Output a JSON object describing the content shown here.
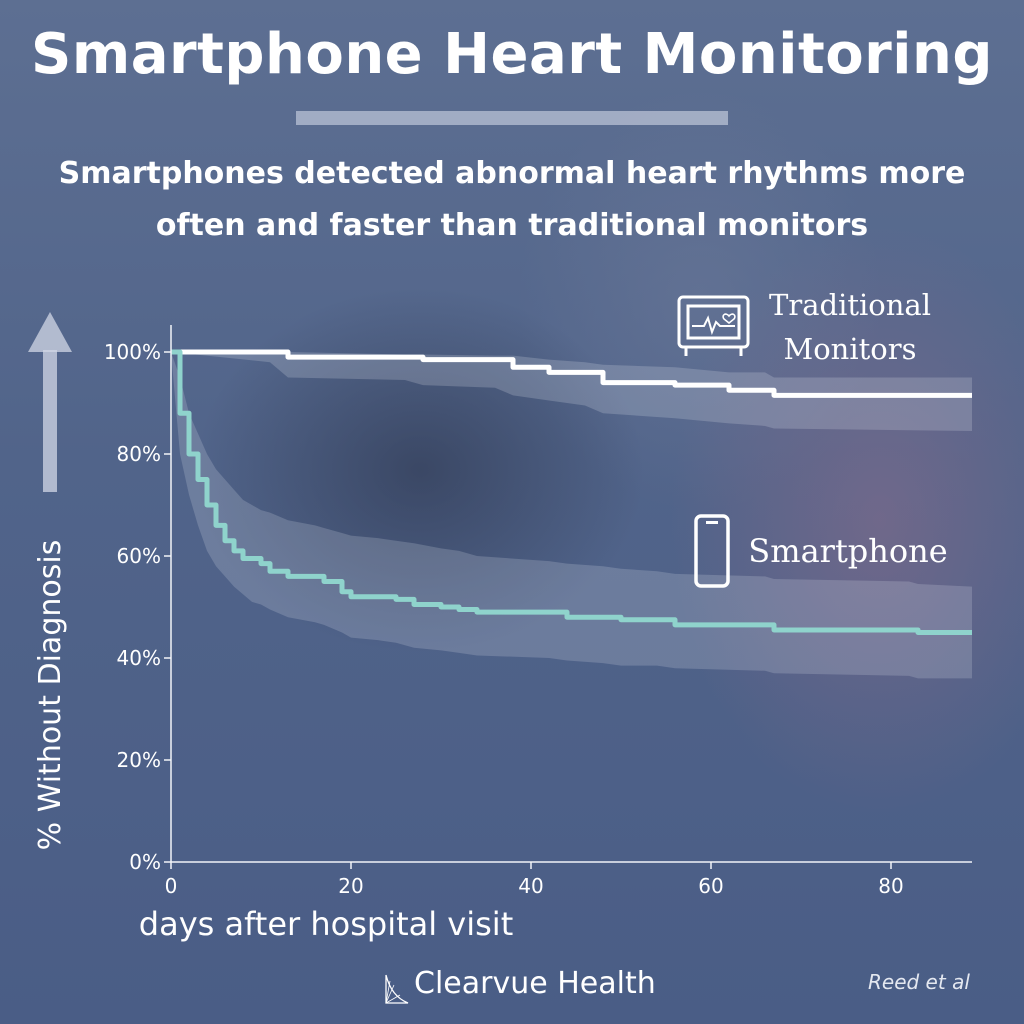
{
  "header": {
    "title": "Smartphone Heart Monitoring",
    "subtitle_line1": "Smartphones detected abnormal heart rhythms more",
    "subtitle_line2": "often and faster than traditional monitors"
  },
  "footer": {
    "brand": "Clearvue Health",
    "citation": "Reed et al"
  },
  "colors": {
    "traditional": "#ffffff",
    "smartphone": "#8fd3cc",
    "ci_band": "#e0e4ee"
  },
  "chart_data": {
    "type": "line",
    "xlabel": "days after hospital visit",
    "ylabel": "% Without Diagnosis",
    "xlim": [
      0,
      89
    ],
    "ylim": [
      0,
      100
    ],
    "x_ticks": [
      0,
      20,
      40,
      60,
      80
    ],
    "y_ticks": [
      0,
      20,
      40,
      60,
      80,
      100
    ],
    "y_tick_labels": [
      "0%",
      "20%",
      "40%",
      "60%",
      "80%",
      "100%"
    ],
    "grid": false,
    "series": [
      {
        "name": "Traditional Monitors",
        "icon": "monitor-icon",
        "x": [
          0,
          11,
          13,
          26,
          28,
          36,
          38,
          42,
          46,
          48,
          56,
          62,
          66,
          67,
          89
        ],
        "y": [
          100,
          100,
          99,
          99,
          98.5,
          98.5,
          97,
          96,
          96,
          94,
          93.5,
          92.5,
          92.5,
          91.5,
          91.5
        ],
        "ci_upper": [
          100,
          100,
          100,
          99.5,
          99.5,
          99.3,
          99.3,
          98.5,
          98,
          97.5,
          97,
          96,
          96,
          95,
          95
        ],
        "ci_lower": [
          100,
          98,
          95,
          94.5,
          93.5,
          93,
          91.5,
          90.5,
          89.5,
          88,
          87,
          86,
          85.5,
          85,
          84.5
        ]
      },
      {
        "name": "Smartphone",
        "icon": "smartphone-icon",
        "x": [
          0,
          1,
          2,
          3,
          4,
          5,
          6,
          7,
          8,
          9,
          10,
          11,
          13,
          16,
          17,
          19,
          20,
          23,
          25,
          27,
          30,
          32,
          34,
          42,
          44,
          48,
          50,
          54,
          56,
          66,
          67,
          82,
          83,
          89
        ],
        "y": [
          100,
          88,
          80,
          75,
          70,
          66,
          63,
          61,
          59.5,
          59.5,
          58.5,
          57,
          56,
          56,
          55,
          53,
          52,
          52,
          51.5,
          50.5,
          50,
          49.5,
          49,
          49,
          48,
          48,
          47.5,
          47.5,
          46.5,
          46.5,
          45.5,
          45.5,
          45,
          45
        ],
        "ci_upper": [
          100,
          95,
          88,
          84,
          80,
          77,
          75,
          73,
          71,
          70,
          69,
          68.5,
          67,
          66,
          65.5,
          64.5,
          64,
          63.5,
          63,
          62.5,
          61.5,
          61,
          60,
          59,
          58.5,
          58,
          57.5,
          57,
          56.5,
          56,
          55.5,
          55,
          54.5,
          54
        ],
        "ci_lower": [
          100,
          80,
          72,
          66,
          61,
          58,
          56,
          54,
          52.5,
          51,
          50.5,
          49.5,
          48,
          47,
          46.5,
          45,
          44,
          43.5,
          43,
          42,
          41.5,
          41,
          40.5,
          40,
          39.5,
          39,
          38.5,
          38.5,
          38,
          37.5,
          37,
          36.5,
          36,
          36
        ]
      }
    ]
  }
}
